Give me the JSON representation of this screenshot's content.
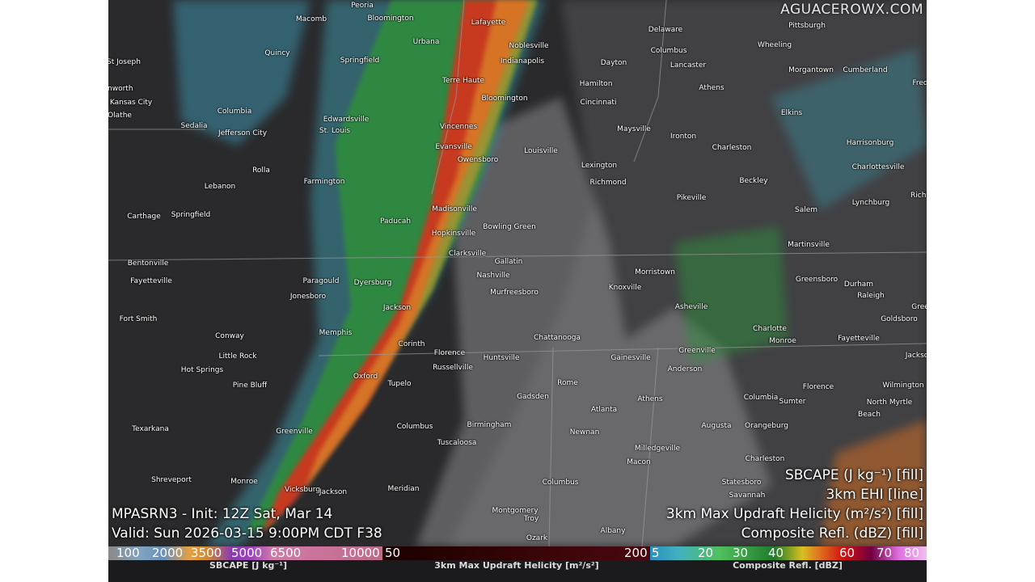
{
  "watermark": "AGUACEROWX.COM",
  "model_info": {
    "init": "MPASRN3 - Init: 12Z Sat, Mar 14",
    "valid": "Valid: Sun 2026-03-15 9:00PM CDT F38"
  },
  "layers": [
    "SBCAPE (J kg⁻¹) [fill]",
    "3km EHI [line]",
    "3km Max Updraft Helicity (m²/s²) [fill]",
    "Composite Refl. (dBZ) [fill]"
  ],
  "legends": {
    "sbcape": {
      "title": "SBCAPE [J kg⁻¹]",
      "ticks": [
        "100",
        "2000",
        "3500",
        "5000",
        "6500",
        "10000"
      ]
    },
    "helicity": {
      "title": "3km Max Updraft Helicity [m²/s²]",
      "ticks": [
        "50",
        "200"
      ]
    },
    "reflectivity": {
      "title": "Composite Refl. [dBZ]",
      "ticks": [
        "5",
        "20",
        "30",
        "40",
        "60",
        "70",
        "80"
      ]
    }
  },
  "colors": {
    "background": "#2a2a2c",
    "radar_green": "#2f8f3a",
    "radar_red": "#d8301e",
    "cape_gray": "#8a8a8e",
    "helicity_bar": "#3a0508"
  },
  "cities": [
    "Peoria",
    "Bloomington",
    "Lafayette",
    "Macomb",
    "Quincy",
    "Springfield",
    "Urbana",
    "Noblesville",
    "Indianapolis",
    "Dayton",
    "Columbus",
    "Delaware",
    "Pittsburgh",
    "Wheeling",
    "Lancaster",
    "Morgantown",
    "Cumberland",
    "St Joseph",
    "Kansas City",
    "Olathe",
    "Columbia",
    "Sedalia",
    "Jefferson City",
    "Edwardsville",
    "St. Louis",
    "Terre Haute",
    "Bloomington",
    "Hamilton",
    "Cincinnati",
    "Athens",
    "Vincennes",
    "Louisville",
    "Maysville",
    "Ironton",
    "Charleston",
    "Elkins",
    "Harrisonburg",
    "Rolla",
    "Lebanon",
    "Farmington",
    "Evansville",
    "Owensboro",
    "Lexington",
    "Richmond",
    "Charlottesville",
    "Beckley",
    "Lynchburg",
    "Carthage",
    "Springfield",
    "Paducah",
    "Madisonville",
    "Pikeville",
    "Salem",
    "Bowling Green",
    "Hopkinsville",
    "Clarksville",
    "Martinsville",
    "Bentonville",
    "Fayetteville",
    "Paragould",
    "Dyersburg",
    "Gallatin",
    "Nashville",
    "Murfreesboro",
    "Morristown",
    "Knoxville",
    "Greensboro",
    "Durham",
    "Raleigh",
    "Jonesboro",
    "Jackson",
    "Asheville",
    "Fort Smith",
    "Memphis",
    "Conway",
    "Chattanooga",
    "Charlotte",
    "Goldsboro",
    "Greenville",
    "Monroe",
    "Corinth",
    "Florence",
    "Huntsville",
    "Russellville",
    "Little Rock",
    "Fayetteville",
    "Hot Springs",
    "Gainesville",
    "Anderson",
    "Oxford",
    "Tupelo",
    "Pine Bluff",
    "Rome",
    "Gadsden",
    "Athens",
    "Columbia",
    "Sumter",
    "Florence",
    "Wilmington",
    "North Myrtle",
    "Beach",
    "Columbus",
    "Birmingham",
    "Atlanta",
    "Newnan",
    "Augusta",
    "Orangeburg",
    "Texarkana",
    "Greenville",
    "Tuscaloosa",
    "Milledgeville",
    "Macon",
    "Shreveport",
    "Monroe",
    "Charleston",
    "Statesboro",
    "Vicksburg",
    "Jackson",
    "Meridian",
    "Montgomery",
    "Savannah",
    "Columbus",
    "Troy",
    "Ozark",
    "Albany",
    "enworth",
    "Fred",
    "Richi",
    "Gree",
    "Jackso"
  ]
}
